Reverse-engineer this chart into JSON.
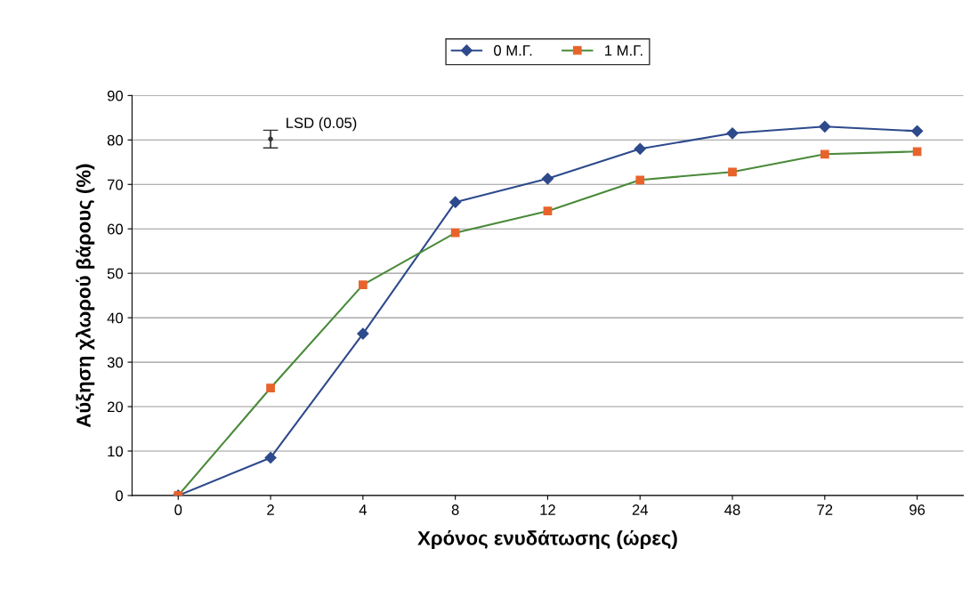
{
  "chart_data": {
    "type": "line",
    "xlabel": "Χρόνος ενυδάτωσης (ώρες)",
    "ylabel": "Αύξηση χλωρού βάρους (%)",
    "categories": [
      "0",
      "2",
      "4",
      "8",
      "12",
      "24",
      "48",
      "72",
      "96"
    ],
    "series": [
      {
        "name": "0 Μ.Γ.",
        "color": "#2e4a8c",
        "marker": "diamond",
        "values": [
          0,
          8.5,
          36.4,
          66,
          71.3,
          78,
          81.5,
          83,
          82
        ]
      },
      {
        "name": "1 Μ.Γ.",
        "color": "#4a8a3a",
        "colors": [
          "#e8632b",
          "#e8632b",
          "#e8632b",
          "#e8632b",
          "#e8632b",
          "#e8632b",
          "#e8632b",
          "#e8632b",
          "#e8632b"
        ],
        "marker": "square",
        "values": [
          0,
          24.2,
          47.4,
          59.1,
          64,
          71,
          72.8,
          76.8,
          77.4
        ]
      },
      {
        "type": "scatter",
        "color": "#333333",
        "marker": "circle",
        "values": [
          null,
          80.2,
          null,
          null,
          null,
          null,
          null,
          null,
          null
        ],
        "errors": [
          null,
          2,
          null,
          null,
          null,
          null,
          null,
          null,
          null
        ]
      }
    ],
    "annotations": [
      {
        "text": "LSD (0.05)",
        "x": "2",
        "y": 82
      }
    ],
    "ylim": [
      0,
      90
    ],
    "yticks": [
      0,
      10,
      20,
      30,
      40,
      50,
      60,
      70,
      80,
      90
    ],
    "grid": "y",
    "legend": "top"
  }
}
